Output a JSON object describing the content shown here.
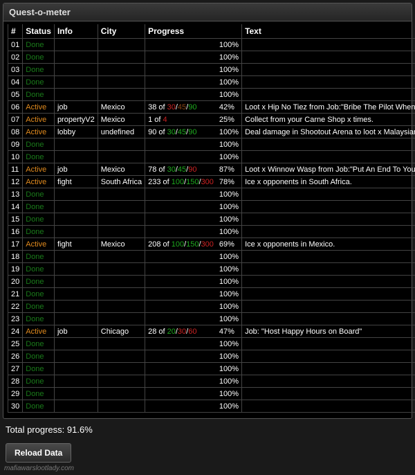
{
  "title": "Quest-o-meter",
  "columns": [
    "#",
    "Status",
    "Info",
    "City",
    "Progress",
    "",
    "Text"
  ],
  "total_label": "Total progress:",
  "total_value": "91.6%",
  "reload_label": "Reload Data",
  "watermark": "mafiawarslootlady.com",
  "colors": {
    "done": "#1a7a1a",
    "active": "#e08a1e",
    "green": "#1eaa1e",
    "red": "#cc2222",
    "brown": "#8b4513",
    "bg": "#000000",
    "border": "#444444"
  },
  "rows": [
    {
      "n": "01",
      "status": "Done",
      "pct": "100%"
    },
    {
      "n": "02",
      "status": "Done",
      "pct": "100%"
    },
    {
      "n": "03",
      "status": "Done",
      "pct": "100%"
    },
    {
      "n": "04",
      "status": "Done",
      "pct": "100%"
    },
    {
      "n": "05",
      "status": "Done",
      "pct": "100%"
    },
    {
      "n": "06",
      "status": "Active",
      "info": "job",
      "city": "Mexico",
      "progress": [
        {
          "t": "38 of "
        },
        {
          "t": "30",
          "c": "red"
        },
        {
          "t": "/"
        },
        {
          "t": "45",
          "c": "brown"
        },
        {
          "t": "/"
        },
        {
          "t": "90",
          "c": "green"
        }
      ],
      "pct": "42%",
      "text": "Loot x Hip No Tiez from Job:\"Bribe The Pilot When You're Discovered\"."
    },
    {
      "n": "07",
      "status": "Active",
      "info": "propertyV2",
      "city": "Mexico",
      "progress": [
        {
          "t": "1 of "
        },
        {
          "t": "4",
          "c": "red"
        }
      ],
      "pct": "25%",
      "text": "Collect from your Carne Shop x times."
    },
    {
      "n": "08",
      "status": "Active",
      "info": "lobby",
      "city": "undefined",
      "progress": [
        {
          "t": "90 of "
        },
        {
          "t": "30",
          "c": "green"
        },
        {
          "t": "/"
        },
        {
          "t": "45",
          "c": "green"
        },
        {
          "t": "/"
        },
        {
          "t": "90",
          "c": "green"
        }
      ],
      "pct": "100%",
      "text": "Deal damage in Shootout Arena to loot x Malaysian Cat Gecko."
    },
    {
      "n": "09",
      "status": "Done",
      "pct": "100%"
    },
    {
      "n": "10",
      "status": "Done",
      "pct": "100%"
    },
    {
      "n": "11",
      "status": "Active",
      "info": "job",
      "city": "Mexico",
      "progress": [
        {
          "t": "78 of "
        },
        {
          "t": "30",
          "c": "green"
        },
        {
          "t": "/"
        },
        {
          "t": "45",
          "c": "green"
        },
        {
          "t": "/"
        },
        {
          "t": "90",
          "c": "red"
        }
      ],
      "pct": "87%",
      "text": "Loot x Winnow Wasp from Job:\"Put An End To Your Ex-Mafia's Operations\"."
    },
    {
      "n": "12",
      "status": "Active",
      "info": "fight",
      "city": "South Africa",
      "progress": [
        {
          "t": "233 of "
        },
        {
          "t": "100",
          "c": "green"
        },
        {
          "t": "/"
        },
        {
          "t": "150",
          "c": "green"
        },
        {
          "t": "/"
        },
        {
          "t": "300",
          "c": "red"
        }
      ],
      "pct": "78%",
      "text": "Ice x opponents in South Africa."
    },
    {
      "n": "13",
      "status": "Done",
      "pct": "100%"
    },
    {
      "n": "14",
      "status": "Done",
      "pct": "100%"
    },
    {
      "n": "15",
      "status": "Done",
      "pct": "100%"
    },
    {
      "n": "16",
      "status": "Done",
      "pct": "100%"
    },
    {
      "n": "17",
      "status": "Active",
      "info": "fight",
      "city": "Mexico",
      "progress": [
        {
          "t": "208 of "
        },
        {
          "t": "100",
          "c": "green"
        },
        {
          "t": "/"
        },
        {
          "t": "150",
          "c": "green"
        },
        {
          "t": "/"
        },
        {
          "t": "300",
          "c": "red"
        }
      ],
      "pct": "69%",
      "text": "Ice x opponents in Mexico."
    },
    {
      "n": "18",
      "status": "Done",
      "pct": "100%"
    },
    {
      "n": "19",
      "status": "Done",
      "pct": "100%"
    },
    {
      "n": "20",
      "status": "Done",
      "pct": "100%"
    },
    {
      "n": "21",
      "status": "Done",
      "pct": "100%"
    },
    {
      "n": "22",
      "status": "Done",
      "pct": "100%"
    },
    {
      "n": "23",
      "status": "Done",
      "pct": "100%"
    },
    {
      "n": "24",
      "status": "Active",
      "info": "job",
      "city": "Chicago",
      "progress": [
        {
          "t": "28 of "
        },
        {
          "t": "20",
          "c": "green"
        },
        {
          "t": "/"
        },
        {
          "t": "30",
          "c": "red"
        },
        {
          "t": "/"
        },
        {
          "t": "60",
          "c": "red"
        }
      ],
      "pct": "47%",
      "text": "Job: \"Host Happy Hours on Board\""
    },
    {
      "n": "25",
      "status": "Done",
      "pct": "100%"
    },
    {
      "n": "26",
      "status": "Done",
      "pct": "100%"
    },
    {
      "n": "27",
      "status": "Done",
      "pct": "100%"
    },
    {
      "n": "28",
      "status": "Done",
      "pct": "100%"
    },
    {
      "n": "29",
      "status": "Done",
      "pct": "100%"
    },
    {
      "n": "30",
      "status": "Done",
      "pct": "100%"
    }
  ]
}
